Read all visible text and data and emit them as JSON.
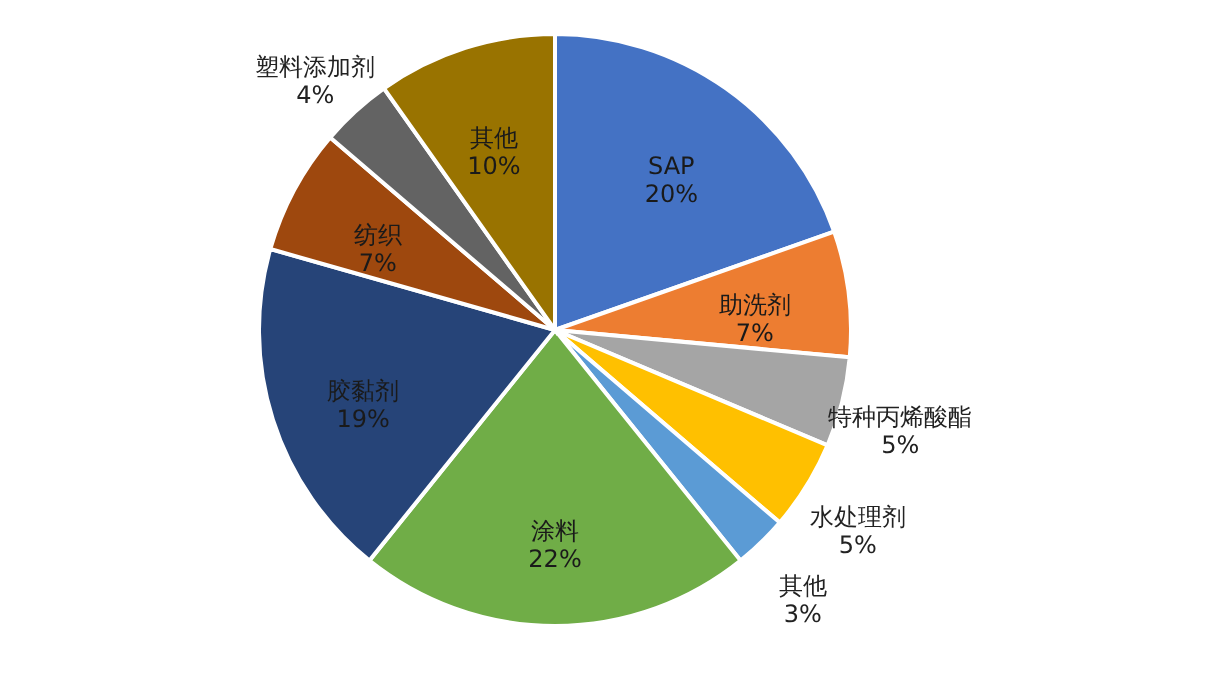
{
  "chart_data": {
    "type": "pie",
    "categories": [
      "SAP",
      "助洗剂",
      "特种丙烯酸酯",
      "水处理剂",
      "其他",
      "涂料",
      "胶黏剂",
      "纺织",
      "塑料添加剂",
      "其他"
    ],
    "values": [
      20,
      7,
      5,
      5,
      3,
      22,
      19,
      7,
      4,
      10
    ],
    "value_labels": [
      "20%",
      "7%",
      "5%",
      "5%",
      "3%",
      "22%",
      "19%",
      "7%",
      "4%",
      "10%"
    ],
    "colors": [
      "#4472c4",
      "#ed7d31",
      "#a5a5a5",
      "#ffc000",
      "#5b9bd5",
      "#70ad47",
      "#264478",
      "#9e480e",
      "#636363",
      "#997300"
    ],
    "legend": false
  }
}
